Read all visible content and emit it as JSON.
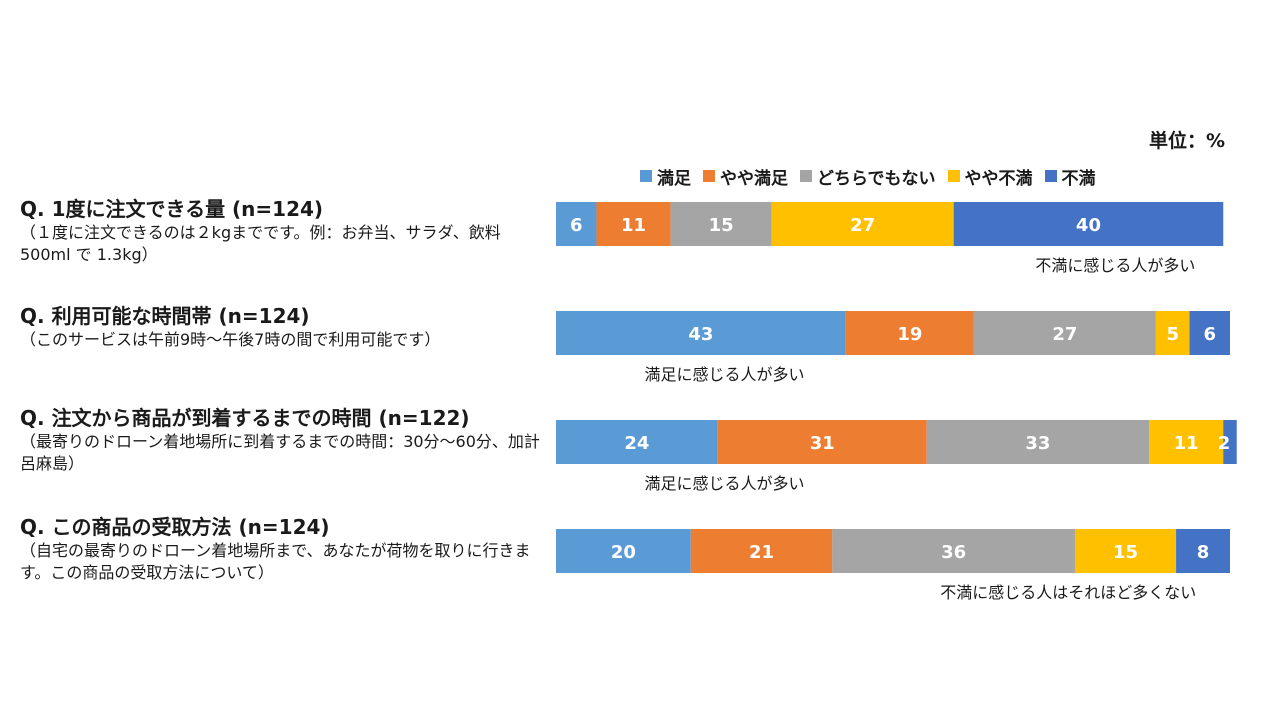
{
  "unit_label": "単位：%",
  "chart_data": {
    "type": "bar",
    "orientation": "horizontal",
    "stacked": true,
    "percent": true,
    "xlim": [
      0,
      100
    ],
    "legend_position": "top-right",
    "grid": false,
    "series": [
      {
        "name": "満足",
        "color": "#5b9bd5"
      },
      {
        "name": "やや満足",
        "color": "#ed7d31"
      },
      {
        "name": "どちらでもない",
        "color": "#a5a5a5"
      },
      {
        "name": "やや不満",
        "color": "#ffc000"
      },
      {
        "name": "不満",
        "color": "#4472c4"
      }
    ],
    "rows": [
      {
        "title": "Q. 1度に注文できる量 (n=124)",
        "description": "（１度に注文できるのは２kgまでです。例：お弁当、サラダ、飲料 500ml で 1.3kg）",
        "values": [
          6,
          11,
          15,
          27,
          40
        ],
        "annotation": "不満に感じる人が多い",
        "annotation_side": "right"
      },
      {
        "title": "Q. 利用可能な時間帯 (n=124)",
        "description": "（このサービスは午前9時～午後7時の間で利用可能です）",
        "values": [
          43,
          19,
          27,
          5,
          6
        ],
        "annotation": "満足に感じる人が多い",
        "annotation_side": "left"
      },
      {
        "title": "Q. 注文から商品が到着するまでの時間 (n=122)",
        "description": "（最寄りのドローン着地場所に到着するまでの時間：30分～60分、加計呂麻島）",
        "values": [
          24,
          31,
          33,
          11,
          2
        ],
        "annotation": "満足に感じる人が多い",
        "annotation_side": "left"
      },
      {
        "title": "Q. この商品の受取方法 (n=124)",
        "description": "（自宅の最寄りのドローン着地場所まで、あなたが荷物を取りに行きます。この商品の受取方法について）",
        "values": [
          20,
          21,
          36,
          15,
          8
        ],
        "annotation": "不満に感じる人はそれほど多くない",
        "annotation_side": "right"
      }
    ]
  }
}
